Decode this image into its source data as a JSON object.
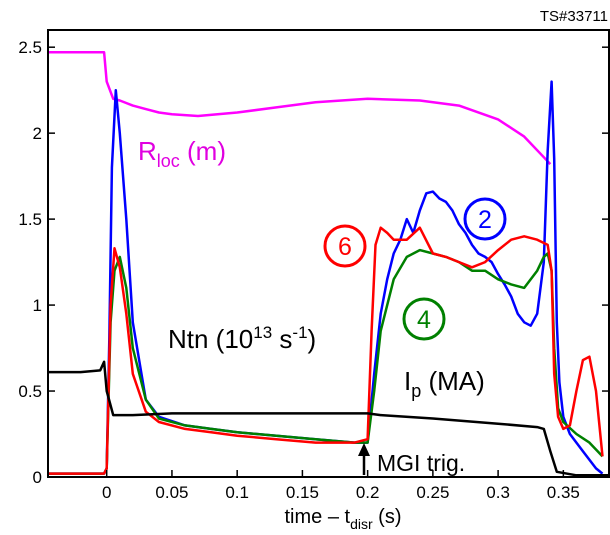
{
  "chart_data": {
    "type": "line",
    "title": "TS#33711",
    "xlabel": {
      "main": "time – t",
      "sub": "disr",
      "unit": " (s)"
    },
    "ylabel": "",
    "xlim": [
      -0.045,
      0.385
    ],
    "ylim": [
      0,
      2.6
    ],
    "x_ticks": [
      0,
      0.05,
      0.1,
      0.15,
      0.2,
      0.25,
      0.3,
      0.35
    ],
    "x_tick_labels": [
      "0",
      "0.05",
      "0.1",
      "0.15",
      "0.2",
      "0.25",
      "0.3",
      "0.35"
    ],
    "y_ticks": [
      0,
      0.5,
      1,
      1.5,
      2,
      2.5
    ],
    "y_tick_labels": [
      "0",
      "0.5",
      "1",
      "1.5",
      "2",
      "2.5"
    ],
    "grid": false,
    "series": [
      {
        "name": "",
        "color": "#ff00ff",
        "x": [
          -0.045,
          -0.002,
          0.0,
          0.005,
          0.01,
          0.02,
          0.03,
          0.04,
          0.05,
          0.07,
          0.1,
          0.13,
          0.16,
          0.2,
          0.24,
          0.27,
          0.3,
          0.32,
          0.335,
          0.34
        ],
        "y": [
          2.47,
          2.47,
          2.3,
          2.2,
          2.19,
          2.16,
          2.14,
          2.12,
          2.11,
          2.1,
          2.12,
          2.15,
          2.18,
          2.2,
          2.19,
          2.16,
          2.08,
          1.98,
          1.86,
          1.82
        ]
      },
      {
        "name": "",
        "color": "#0000ff",
        "x": [
          -0.045,
          -0.002,
          0.0,
          0.002,
          0.004,
          0.007,
          0.01,
          0.015,
          0.02,
          0.03,
          0.04,
          0.06,
          0.08,
          0.1,
          0.13,
          0.16,
          0.19,
          0.2,
          0.205,
          0.21,
          0.215,
          0.22,
          0.225,
          0.23,
          0.235,
          0.24,
          0.245,
          0.25,
          0.255,
          0.26,
          0.265,
          0.27,
          0.275,
          0.28,
          0.285,
          0.29,
          0.295,
          0.3,
          0.305,
          0.31,
          0.315,
          0.32,
          0.325,
          0.33,
          0.335,
          0.338,
          0.341,
          0.343,
          0.345,
          0.347,
          0.35,
          0.355,
          0.365,
          0.375,
          0.38
        ],
        "y": [
          0.02,
          0.02,
          0.05,
          0.8,
          1.8,
          2.25,
          2.0,
          1.5,
          0.9,
          0.45,
          0.35,
          0.3,
          0.28,
          0.26,
          0.24,
          0.22,
          0.2,
          0.2,
          0.6,
          0.95,
          1.15,
          1.3,
          1.38,
          1.5,
          1.42,
          1.55,
          1.65,
          1.66,
          1.62,
          1.6,
          1.55,
          1.47,
          1.42,
          1.35,
          1.3,
          1.28,
          1.25,
          1.18,
          1.12,
          1.05,
          0.95,
          0.9,
          0.88,
          0.95,
          1.25,
          1.9,
          2.3,
          1.85,
          0.9,
          0.55,
          0.35,
          0.25,
          0.15,
          0.05,
          0.02
        ]
      },
      {
        "name": "",
        "color": "#008000",
        "x": [
          -0.045,
          -0.002,
          0.0,
          0.003,
          0.006,
          0.01,
          0.015,
          0.02,
          0.03,
          0.04,
          0.06,
          0.08,
          0.1,
          0.13,
          0.16,
          0.19,
          0.2,
          0.205,
          0.21,
          0.22,
          0.23,
          0.24,
          0.25,
          0.26,
          0.27,
          0.28,
          0.29,
          0.3,
          0.31,
          0.32,
          0.33,
          0.335,
          0.338,
          0.341,
          0.343,
          0.346,
          0.35,
          0.36,
          0.37,
          0.38
        ],
        "y": [
          0.02,
          0.02,
          0.05,
          0.9,
          1.2,
          1.28,
          1.1,
          0.75,
          0.45,
          0.34,
          0.3,
          0.28,
          0.26,
          0.24,
          0.22,
          0.2,
          0.2,
          0.5,
          0.85,
          1.15,
          1.28,
          1.32,
          1.3,
          1.28,
          1.25,
          1.2,
          1.2,
          1.15,
          1.12,
          1.1,
          1.2,
          1.28,
          1.3,
          1.2,
          0.75,
          0.4,
          0.32,
          0.25,
          0.2,
          0.12
        ]
      },
      {
        "name": "",
        "color": "#ff0000",
        "x": [
          -0.045,
          -0.002,
          0.0,
          0.003,
          0.006,
          0.01,
          0.015,
          0.02,
          0.03,
          0.04,
          0.06,
          0.08,
          0.1,
          0.13,
          0.16,
          0.19,
          0.2,
          0.203,
          0.206,
          0.21,
          0.215,
          0.22,
          0.23,
          0.24,
          0.25,
          0.26,
          0.27,
          0.28,
          0.29,
          0.3,
          0.31,
          0.32,
          0.33,
          0.338,
          0.341,
          0.343,
          0.346,
          0.35,
          0.355,
          0.36,
          0.365,
          0.37,
          0.375,
          0.38
        ],
        "y": [
          0.02,
          0.02,
          0.05,
          1.0,
          1.33,
          1.22,
          0.95,
          0.6,
          0.38,
          0.32,
          0.28,
          0.26,
          0.24,
          0.22,
          0.2,
          0.2,
          0.22,
          0.85,
          1.35,
          1.45,
          1.42,
          1.38,
          1.38,
          1.45,
          1.3,
          1.28,
          1.25,
          1.22,
          1.25,
          1.32,
          1.38,
          1.4,
          1.38,
          1.35,
          1.2,
          0.6,
          0.35,
          0.28,
          0.3,
          0.5,
          0.68,
          0.7,
          0.5,
          0.12
        ]
      },
      {
        "name": "",
        "color": "#000000",
        "x": [
          -0.045,
          -0.02,
          -0.005,
          -0.002,
          0.0,
          0.005,
          0.02,
          0.05,
          0.1,
          0.15,
          0.2,
          0.21,
          0.25,
          0.3,
          0.33,
          0.335,
          0.34,
          0.345,
          0.36,
          0.385
        ],
        "y": [
          0.61,
          0.61,
          0.62,
          0.67,
          0.5,
          0.36,
          0.36,
          0.37,
          0.37,
          0.37,
          0.37,
          0.36,
          0.34,
          0.31,
          0.29,
          0.28,
          0.15,
          0.03,
          0.01,
          0.01
        ]
      }
    ],
    "annotations": {
      "rloc": {
        "main": "R",
        "sub": "loc",
        "tail": " (m)",
        "color": "#e000e0"
      },
      "ntn": {
        "main": "Ntn (10",
        "sup1": "13",
        "mid": " s",
        "sup2": "-1",
        "tail": ")",
        "color": "#000000"
      },
      "ip": {
        "main": "I",
        "sub": "p",
        "tail": " (MA)",
        "color": "#000000"
      },
      "mgi": {
        "text": "MGI trig.",
        "color": "#000000"
      },
      "circle_2": {
        "text": "2",
        "color": "#0000ff"
      },
      "circle_4": {
        "text": "4",
        "color": "#008000"
      },
      "circle_6": {
        "text": "6",
        "color": "#ff0000"
      }
    }
  }
}
